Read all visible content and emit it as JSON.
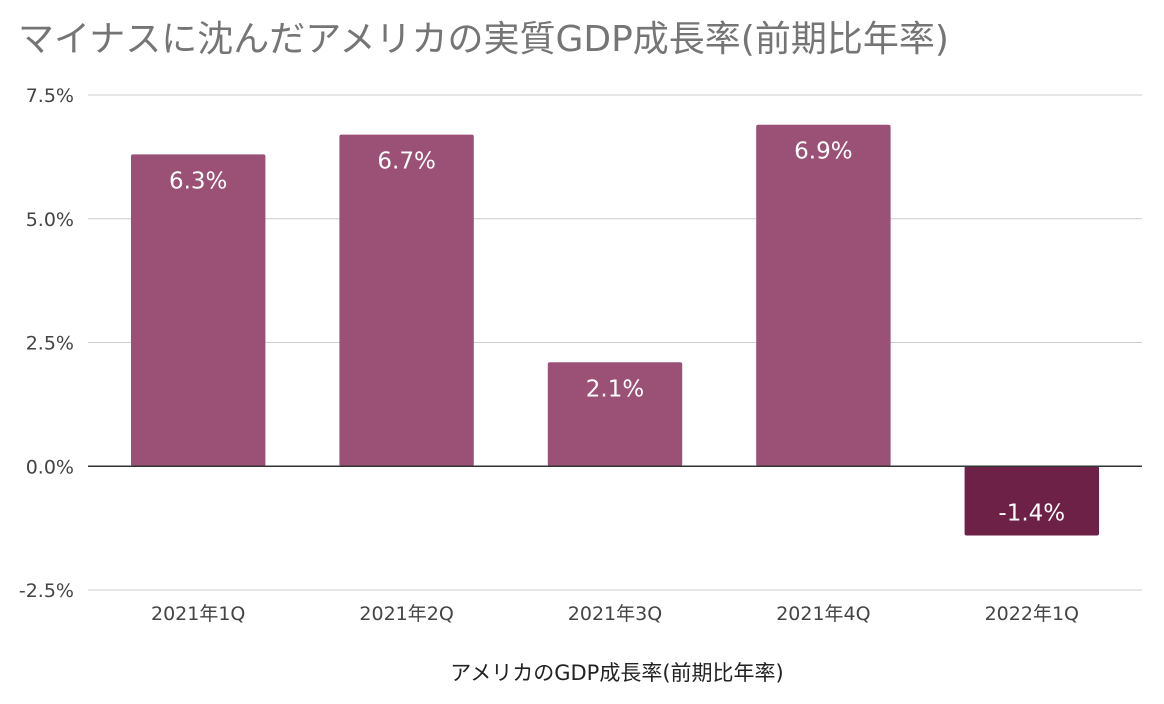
{
  "chart_data": {
    "type": "bar",
    "title": "マイナスに沈んだアメリカの実質GDP成長率(前期比年率)",
    "xlabel": "アメリカのGDP成長率(前期比年率)",
    "ylabel": "",
    "categories": [
      "2021年1Q",
      "2021年2Q",
      "2021年3Q",
      "2021年4Q",
      "2022年1Q"
    ],
    "values": [
      6.3,
      6.7,
      2.1,
      6.9,
      -1.4
    ],
    "data_labels": [
      "6.3%",
      "6.7%",
      "2.1%",
      "6.9%",
      "-1.4%"
    ],
    "ylim": [
      -2.5,
      7.5
    ],
    "yticks": [
      7.5,
      5.0,
      2.5,
      0.0,
      -2.5
    ],
    "ytick_labels": [
      "7.5%",
      "5.0%",
      "2.5%",
      "0.0%",
      "-2.5%"
    ],
    "grid": true,
    "legend": "none",
    "colors": {
      "positive": "#9A5175",
      "negative": "#6E2147",
      "gridline": "#cccccc",
      "zeroline": "#333333"
    }
  }
}
